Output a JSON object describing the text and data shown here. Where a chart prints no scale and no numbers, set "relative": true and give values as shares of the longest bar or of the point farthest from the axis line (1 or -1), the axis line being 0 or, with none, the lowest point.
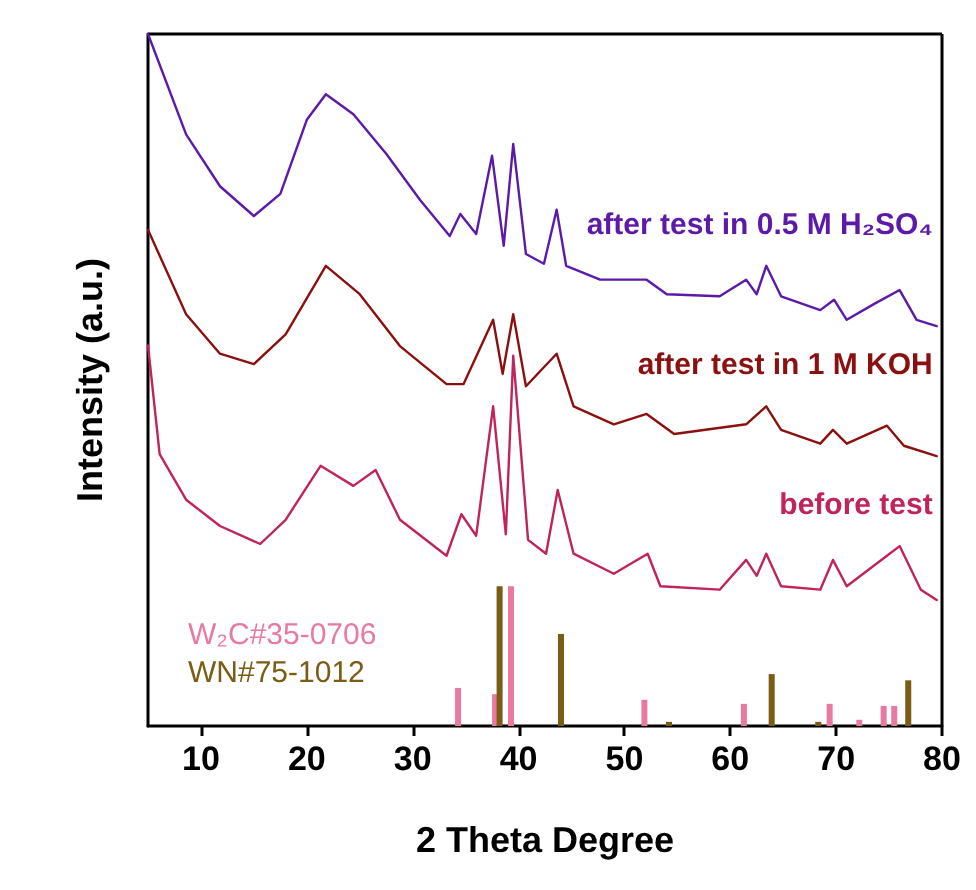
{
  "chart_data": {
    "type": "line",
    "relative": true,
    "xlabel": "2 Theta Degree",
    "ylabel": "Intensity (a.u.)",
    "xlim": [
      5,
      80
    ],
    "xticks": [
      10,
      20,
      30,
      40,
      50,
      60,
      70,
      80
    ],
    "tick_labels": "x",
    "grid": false,
    "legend": "bottom left",
    "marker": "none",
    "line_style": "solid",
    "series": [
      {
        "name": "after test in 0.5 M H₂SO₄",
        "color": "#5b1aa8",
        "x": [
          5,
          8.6,
          11.8,
          15,
          17.5,
          20,
          21.8,
          24.4,
          27.5,
          30.7,
          33.5,
          34.5,
          36,
          37.5,
          38.6,
          39.5,
          40.7,
          42.4,
          43.6,
          44.5,
          47.7,
          52.1,
          54,
          59,
          61.5,
          62.5,
          63.4,
          64.8,
          68.5,
          69.8,
          71,
          73.6,
          76,
          77.6,
          79.5
        ],
        "values": [
          1.0,
          0.855,
          0.78,
          0.737,
          0.769,
          0.876,
          0.913,
          0.884,
          0.827,
          0.76,
          0.708,
          0.74,
          0.711,
          0.824,
          0.694,
          0.841,
          0.682,
          0.668,
          0.746,
          0.665,
          0.645,
          0.645,
          0.624,
          0.621,
          0.645,
          0.624,
          0.665,
          0.621,
          0.601,
          0.616,
          0.587,
          0.61,
          0.63,
          0.587,
          0.578
        ]
      },
      {
        "name": "after test in 1 M KOH",
        "color": "#8b1010",
        "x": [
          5,
          8.6,
          11.8,
          15,
          18,
          21.8,
          25,
          28.8,
          33.2,
          34.8,
          37.6,
          38.5,
          39.5,
          40.7,
          43.6,
          45.2,
          49,
          52.1,
          54.7,
          61.5,
          63.4,
          64.8,
          68.5,
          69.7,
          71,
          74.8,
          76.4,
          79.5
        ],
        "values": [
          0.717,
          0.595,
          0.538,
          0.523,
          0.566,
          0.665,
          0.624,
          0.549,
          0.494,
          0.494,
          0.587,
          0.509,
          0.595,
          0.491,
          0.538,
          0.462,
          0.436,
          0.451,
          0.422,
          0.436,
          0.462,
          0.428,
          0.408,
          0.428,
          0.408,
          0.434,
          0.405,
          0.39
        ]
      },
      {
        "name": "before test",
        "color": "#c0245a",
        "x": [
          5,
          6.1,
          8.6,
          11.8,
          15.6,
          18,
          21.3,
          24.4,
          26.5,
          28.8,
          33.2,
          34.6,
          36,
          37.6,
          38.8,
          39.5,
          40.9,
          42.6,
          43.7,
          45.2,
          49,
          52.2,
          53.4,
          59,
          61.5,
          62.5,
          63.4,
          64.8,
          68.5,
          69.7,
          71,
          74.8,
          76,
          78,
          79.5
        ],
        "values": [
          0.55,
          0.393,
          0.327,
          0.289,
          0.263,
          0.298,
          0.376,
          0.347,
          0.37,
          0.298,
          0.246,
          0.306,
          0.275,
          0.462,
          0.277,
          0.535,
          0.269,
          0.249,
          0.341,
          0.249,
          0.22,
          0.249,
          0.202,
          0.197,
          0.24,
          0.217,
          0.249,
          0.202,
          0.197,
          0.24,
          0.202,
          0.246,
          0.26,
          0.197,
          0.182
        ]
      },
      {
        "name": "W₂C#35-0706",
        "type": "bar",
        "color": "#e87aa0",
        "x": [
          34.6,
          38.1,
          39.6,
          52.2,
          61.6,
          69.7,
          72.5,
          74.8,
          75.8
        ],
        "values": [
          0.055,
          0.046,
          0.202,
          0.038,
          0.032,
          0.032,
          0.009,
          0.029,
          0.029
        ]
      },
      {
        "name": "WN#75-1012",
        "type": "bar",
        "color": "#7a5c14",
        "x": [
          37.9,
          43.7,
          53.9,
          63.6,
          68,
          76.5
        ],
        "values": [
          0.202,
          0.133,
          0.006,
          0.075,
          0.006,
          0.066
        ]
      }
    ]
  }
}
